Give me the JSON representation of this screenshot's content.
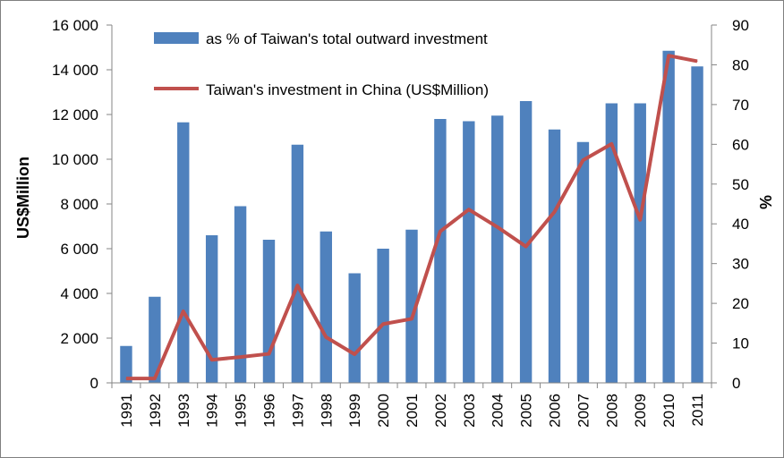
{
  "chart_data": {
    "type": "bar+line",
    "categories": [
      "1991",
      "1992",
      "1993",
      "1994",
      "1995",
      "1996",
      "1997",
      "1998",
      "1999",
      "2000",
      "2001",
      "2002",
      "2003",
      "2004",
      "2005",
      "2006",
      "2007",
      "2008",
      "2009",
      "2010",
      "2011"
    ],
    "series": [
      {
        "name": "as % of Taiwan's total outward investment",
        "type": "bar",
        "axis": "left",
        "color": "#4f81bd",
        "values": [
          1650,
          3850,
          11650,
          6600,
          7900,
          6400,
          10650,
          6770,
          4900,
          6000,
          6850,
          11800,
          11700,
          11950,
          12600,
          11330,
          10770,
          12500,
          12500,
          14850,
          14150
        ]
      },
      {
        "name": "Taiwan's investment in China (US$Million)",
        "type": "line",
        "axis": "right",
        "color": "#c0504d",
        "values": [
          1.1,
          1.1,
          18.0,
          5.8,
          6.5,
          7.3,
          24.5,
          11.5,
          7.2,
          14.8,
          16.1,
          38.1,
          43.6,
          39.2,
          34.3,
          43.0,
          56.0,
          60.1,
          41.0,
          82.3,
          80.9
        ]
      }
    ],
    "left_axis": {
      "label": "US$Million",
      "min": 0,
      "max": 16000,
      "step": 2000,
      "tick_labels": [
        "0",
        "2 000",
        "4 000",
        "6 000",
        "8 000",
        "10 000",
        "12 000",
        "14 000",
        "16 000"
      ]
    },
    "right_axis": {
      "label": "%",
      "min": 0,
      "max": 90,
      "step": 10,
      "tick_labels": [
        "0",
        "10",
        "20",
        "30",
        "40",
        "50",
        "60",
        "70",
        "80",
        "90"
      ]
    },
    "grid": false,
    "legend": "top-center"
  }
}
